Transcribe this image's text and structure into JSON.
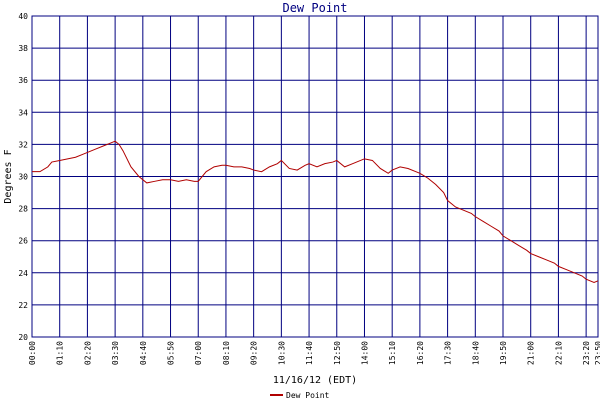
{
  "chart_data": {
    "type": "line",
    "title": "Dew Point",
    "xlabel": "11/16/12 (EDT)",
    "ylabel": "Degrees F",
    "xlim": [
      "00:00",
      "23:50"
    ],
    "ylim": [
      20,
      40
    ],
    "grid": true,
    "legend_position": "bottom-center",
    "colors": {
      "series": "#b00000",
      "grid": "#000080",
      "background": "#ffffff",
      "title": "#000080"
    },
    "x_ticks": [
      "00:00",
      "01:10",
      "02:20",
      "03:30",
      "04:40",
      "05:50",
      "07:00",
      "08:10",
      "09:20",
      "10:30",
      "11:40",
      "12:50",
      "14:00",
      "15:10",
      "16:20",
      "17:30",
      "18:40",
      "19:50",
      "21:00",
      "22:10",
      "23:20",
      "23:50"
    ],
    "y_ticks": [
      20,
      22,
      24,
      26,
      28,
      30,
      32,
      34,
      36,
      38,
      40
    ],
    "series": [
      {
        "name": "Dew Point",
        "x": [
          "00:00",
          "00:20",
          "00:40",
          "00:50",
          "01:10",
          "01:30",
          "01:50",
          "02:10",
          "02:20",
          "02:40",
          "03:00",
          "03:20",
          "03:30",
          "03:40",
          "03:50",
          "04:10",
          "04:30",
          "04:50",
          "05:10",
          "05:30",
          "05:50",
          "06:10",
          "06:30",
          "06:50",
          "07:00",
          "07:20",
          "07:40",
          "08:00",
          "08:10",
          "08:30",
          "08:50",
          "09:10",
          "09:20",
          "09:40",
          "10:00",
          "10:20",
          "10:30",
          "10:50",
          "11:10",
          "11:30",
          "11:40",
          "12:00",
          "12:20",
          "12:40",
          "12:50",
          "13:10",
          "13:30",
          "13:50",
          "14:00",
          "14:20",
          "14:40",
          "15:00",
          "15:10",
          "15:30",
          "15:50",
          "16:10",
          "16:20",
          "16:40",
          "17:00",
          "17:20",
          "17:30",
          "17:50",
          "18:10",
          "18:30",
          "18:40",
          "19:00",
          "19:20",
          "19:40",
          "19:50",
          "20:10",
          "20:30",
          "20:50",
          "21:00",
          "21:20",
          "21:40",
          "22:00",
          "22:10",
          "22:30",
          "22:50",
          "23:10",
          "23:20",
          "23:40",
          "23:50"
        ],
        "y": [
          30.3,
          30.3,
          30.6,
          30.9,
          31.0,
          31.1,
          31.2,
          31.4,
          31.5,
          31.7,
          31.9,
          32.1,
          32.2,
          32.0,
          31.6,
          30.6,
          30.0,
          29.6,
          29.7,
          29.8,
          29.8,
          29.7,
          29.8,
          29.7,
          29.7,
          30.3,
          30.6,
          30.7,
          30.7,
          30.6,
          30.6,
          30.5,
          30.4,
          30.3,
          30.6,
          30.8,
          31.0,
          30.5,
          30.4,
          30.7,
          30.8,
          30.6,
          30.8,
          30.9,
          31.0,
          30.6,
          30.8,
          31.0,
          31.1,
          31.0,
          30.5,
          30.2,
          30.4,
          30.6,
          30.5,
          30.3,
          30.2,
          29.9,
          29.5,
          29.0,
          28.5,
          28.1,
          27.9,
          27.7,
          27.5,
          27.2,
          26.9,
          26.6,
          26.3,
          26.0,
          25.7,
          25.4,
          25.2,
          25.0,
          24.8,
          24.6,
          24.4,
          24.2,
          24.0,
          23.8,
          23.6,
          23.4,
          23.5
        ]
      }
    ]
  }
}
